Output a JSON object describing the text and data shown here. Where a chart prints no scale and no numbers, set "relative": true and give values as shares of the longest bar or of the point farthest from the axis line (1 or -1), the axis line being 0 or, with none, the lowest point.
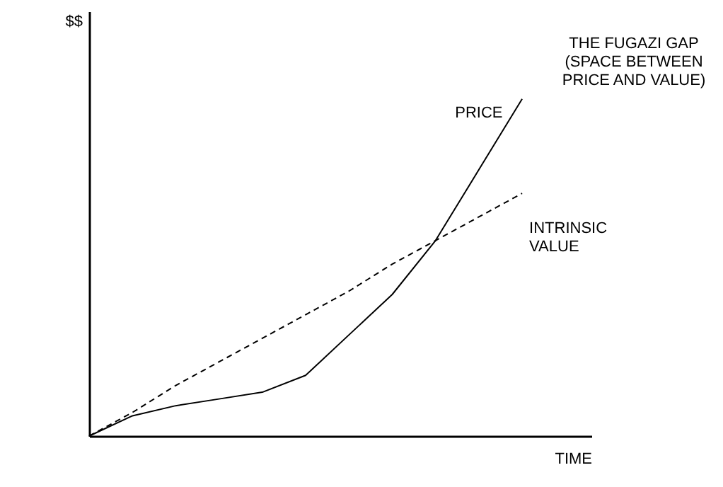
{
  "chart_data": {
    "type": "line",
    "relative": true,
    "xlabel": "TIME",
    "ylabel": "$$",
    "categories": [
      null,
      null,
      null,
      null,
      null,
      null,
      null,
      null,
      null,
      null,
      null
    ],
    "series": [
      {
        "name": "PRICE",
        "color": "#000000",
        "line_style": "solid",
        "values": [
          0,
          0.06,
          0.09,
          0.11,
          0.13,
          0.18,
          0.3,
          0.42,
          0.58,
          0.79,
          1
        ]
      },
      {
        "name": "INTRINSIC VALUE",
        "color": "#000000",
        "line_style": "dashed",
        "values": [
          0,
          0.07,
          0.15,
          0.22,
          0.29,
          0.36,
          0.43,
          0.51,
          0.58,
          0.65,
          0.72
        ]
      }
    ],
    "annotations": [
      "THE FUGAZI GAP (SPACE BETWEEN PRICE AND VALUE)"
    ],
    "grid": false,
    "legend": false,
    "marker": "none"
  }
}
